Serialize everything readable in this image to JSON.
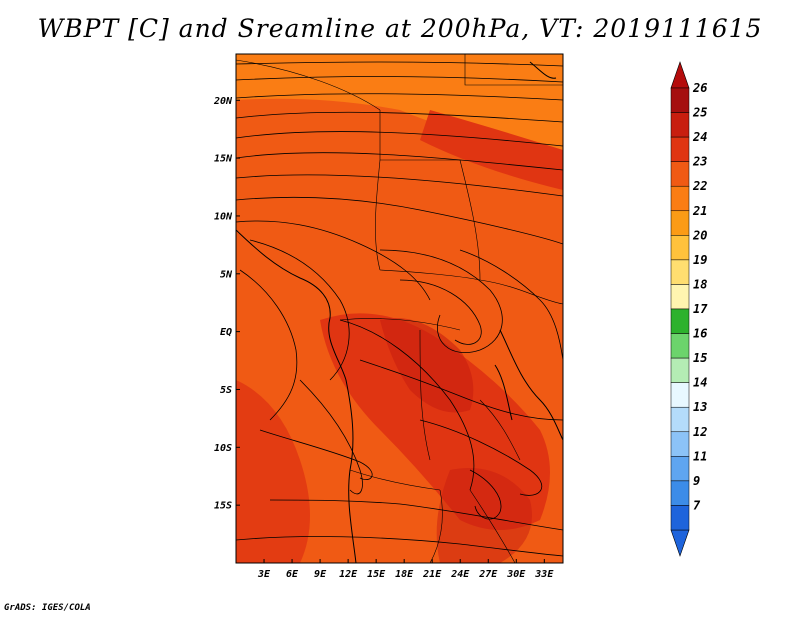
{
  "title": "WBPT [C] and Sreamline at 200hPa, VT: 2019111615",
  "credit": "GrADS: IGES/COLA",
  "map": {
    "x_ticks": [
      "3E",
      "6E",
      "9E",
      "12E",
      "15E",
      "18E",
      "21E",
      "24E",
      "27E",
      "30E",
      "33E"
    ],
    "y_ticks": [
      "20N",
      "15N",
      "10N",
      "5N",
      "EQ",
      "5S",
      "10S",
      "15S"
    ],
    "x_range": [
      0,
      35
    ],
    "y_range": [
      -20,
      24
    ]
  },
  "colorbar": {
    "labels": [
      "26",
      "25",
      "24",
      "23",
      "22",
      "21",
      "20",
      "19",
      "18",
      "17",
      "16",
      "15",
      "14",
      "13",
      "12",
      "11",
      "9",
      "7"
    ],
    "colors": [
      "#a50f0f",
      "#c81e0f",
      "#e03512",
      "#f05a14",
      "#fa7d14",
      "#fb9b16",
      "#ffc23c",
      "#ffde70",
      "#fff5b0",
      "#2db22d",
      "#6cd46c",
      "#b4ecb4",
      "#e8f8ff",
      "#b4dcfa",
      "#8cc3f7",
      "#5fa5f0",
      "#3c8ce8",
      "#1e64dc"
    ],
    "top_color": "#b40c0c",
    "bottom_color": "#1e64dc"
  },
  "field_colors": {
    "w23": "#f05a14",
    "w24": "#e03512",
    "w22": "#fa7d14",
    "w25": "#c81e0f"
  }
}
